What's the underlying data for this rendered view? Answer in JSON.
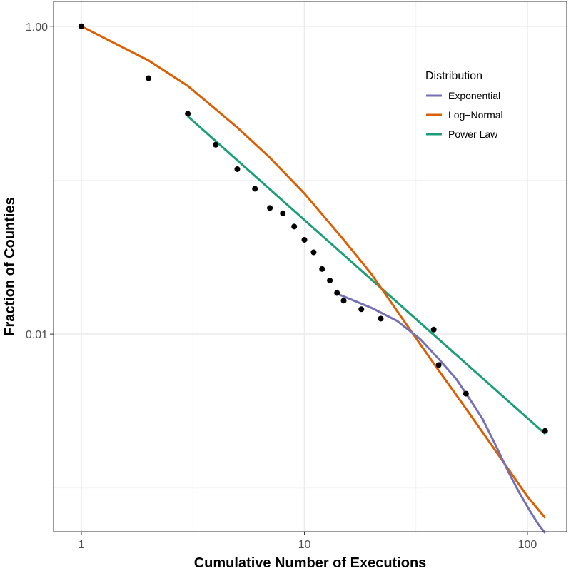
{
  "chart_data": {
    "type": "scatter",
    "xlabel": "Cumulative Number of Executions",
    "ylabel": "Fraction of Counties",
    "x_scale": "log10",
    "y_scale": "log10",
    "xlim": [
      0.75,
      150
    ],
    "ylim": [
      0.00052,
      1.45
    ],
    "x_ticks": [
      {
        "value": 1,
        "label": "1"
      },
      {
        "value": 10,
        "label": "10"
      },
      {
        "value": 100,
        "label": "100"
      }
    ],
    "x_minor_ticks": [
      3.1623,
      31.623
    ],
    "y_ticks": [
      {
        "value": 1,
        "label": "1.00"
      },
      {
        "value": 0.01,
        "label": "0.01"
      }
    ],
    "y_minor_ticks": [
      0.1,
      0.001
    ],
    "grid": true,
    "legend": {
      "title": "Distribution",
      "placement": "top-right",
      "entries": [
        {
          "name": "Exponential",
          "color": "#7570b3"
        },
        {
          "name": "Log−Normal",
          "color": "#d95f02"
        },
        {
          "name": "Power Law",
          "color": "#1b9e77"
        }
      ]
    },
    "points": {
      "color": "#000000",
      "x": [
        1,
        2,
        3,
        4,
        5,
        6,
        7,
        8,
        9,
        10,
        11,
        12,
        13,
        14,
        15,
        18,
        22,
        38,
        40,
        53,
        120
      ],
      "y": [
        1.0,
        0.46,
        0.27,
        0.17,
        0.118,
        0.088,
        0.066,
        0.061,
        0.05,
        0.041,
        0.034,
        0.0265,
        0.0223,
        0.0185,
        0.0165,
        0.0145,
        0.0126,
        0.0107,
        0.0063,
        0.0041,
        0.00235
      ]
    },
    "series": [
      {
        "name": "Exponential",
        "color": "#7570b3",
        "x": [
          14,
          20,
          26,
          33,
          40,
          48,
          55,
          63,
          72,
          82,
          92,
          102,
          112,
          120
        ],
        "y": [
          0.0183,
          0.0148,
          0.0122,
          0.0093,
          0.0069,
          0.0051,
          0.0038,
          0.0028,
          0.0019,
          0.00128,
          0.00093,
          0.00072,
          0.00058,
          0.00051
        ]
      },
      {
        "name": "Log−Normal",
        "color": "#d95f02",
        "x": [
          1,
          2,
          3,
          5,
          7,
          10,
          15,
          20,
          30,
          40,
          50,
          70,
          100,
          120
        ],
        "y": [
          1.0,
          0.6,
          0.41,
          0.22,
          0.14,
          0.082,
          0.041,
          0.0245,
          0.0105,
          0.0058,
          0.0037,
          0.00185,
          0.00088,
          0.00064
        ]
      },
      {
        "name": "Power Law",
        "color": "#1b9e77",
        "x": [
          3,
          120
        ],
        "y": [
          0.26,
          0.00225
        ]
      }
    ]
  }
}
